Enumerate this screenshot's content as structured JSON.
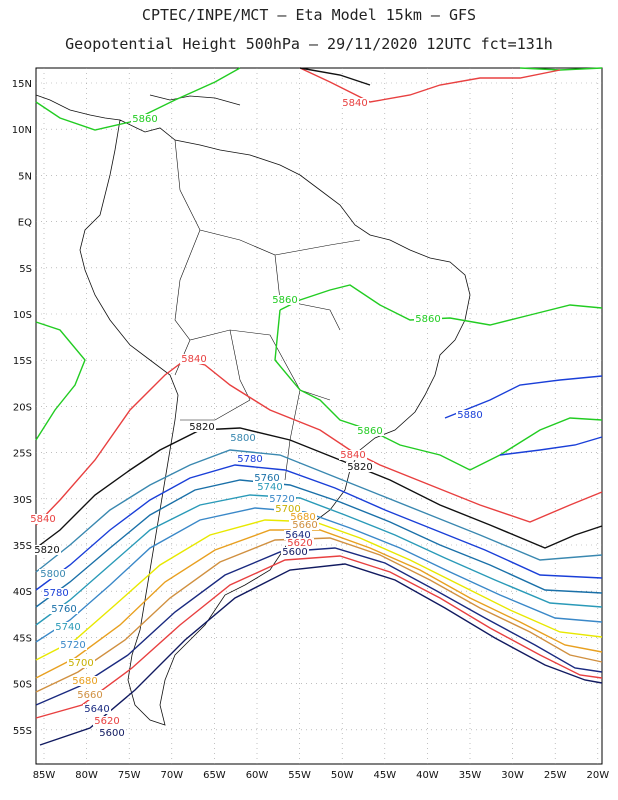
{
  "title_line1": "CPTEC/INPE/MCT –  Eta Model 15km – GFS",
  "title_line2": "Geopotential Height 500hPa – 29/11/2020 12UTC fct=131h",
  "lat_labels": [
    "15N",
    "10N",
    "5N",
    "EQ",
    "5S",
    "10S",
    "15S",
    "20S",
    "25S",
    "30S",
    "35S",
    "40S",
    "45S",
    "50S",
    "55S"
  ],
  "lon_labels": [
    "85W",
    "80W",
    "75W",
    "70W",
    "65W",
    "60W",
    "55W",
    "50W",
    "45W",
    "40W",
    "35W",
    "30W",
    "25W",
    "20W"
  ],
  "colors": {
    "5880": "#1a3fd8",
    "5860": "#22cc22",
    "5840": "#e84040",
    "5820": "#111111",
    "5800": "#3a88b0",
    "5780": "#1a3fd8",
    "5760": "#1a70a8",
    "5740": "#2a9ab8",
    "5720": "#3a88c8",
    "5700": "#e8e800",
    "5680": "#e8a020",
    "5660": "#d09040",
    "5640": "#1a2a80",
    "5620": "#e84040",
    "5600": "#111a60",
    "coast": "#111111",
    "grid": "#999999"
  },
  "contour_labels": [
    {
      "text": "5860",
      "level": "5860"
    },
    {
      "text": "5840",
      "level": "5840"
    },
    {
      "text": "5860",
      "level": "5860"
    },
    {
      "text": "5860",
      "level": "5860"
    },
    {
      "text": "5840",
      "level": "5840"
    },
    {
      "text": "5820",
      "level": "5820"
    },
    {
      "text": "5800",
      "level": "5800"
    },
    {
      "text": "5780",
      "level": "5780"
    },
    {
      "text": "5760",
      "level": "5760"
    },
    {
      "text": "5740",
      "level": "5740"
    },
    {
      "text": "5720",
      "level": "5720"
    },
    {
      "text": "5700",
      "level": "5700"
    },
    {
      "text": "5680",
      "level": "5680"
    },
    {
      "text": "5660",
      "level": "5660"
    },
    {
      "text": "5640",
      "level": "5640"
    },
    {
      "text": "5620",
      "level": "5620"
    },
    {
      "text": "5600",
      "level": "5600"
    },
    {
      "text": "5860",
      "level": "5860"
    },
    {
      "text": "5840",
      "level": "5840"
    },
    {
      "text": "5880",
      "level": "5880"
    },
    {
      "text": "5820",
      "level": "5820"
    },
    {
      "text": "5840",
      "level": "5840"
    },
    {
      "text": "5820",
      "level": "5820"
    },
    {
      "text": "5800",
      "level": "5800"
    },
    {
      "text": "5780",
      "level": "5780"
    },
    {
      "text": "5760",
      "level": "5760"
    },
    {
      "text": "5740",
      "level": "5740"
    },
    {
      "text": "5720",
      "level": "5720"
    },
    {
      "text": "5700",
      "level": "5700"
    },
    {
      "text": "5680",
      "level": "5680"
    },
    {
      "text": "5660",
      "level": "5660"
    },
    {
      "text": "5640",
      "level": "5640"
    },
    {
      "text": "5620",
      "level": "5620"
    },
    {
      "text": "5600",
      "level": "5600"
    }
  ]
}
